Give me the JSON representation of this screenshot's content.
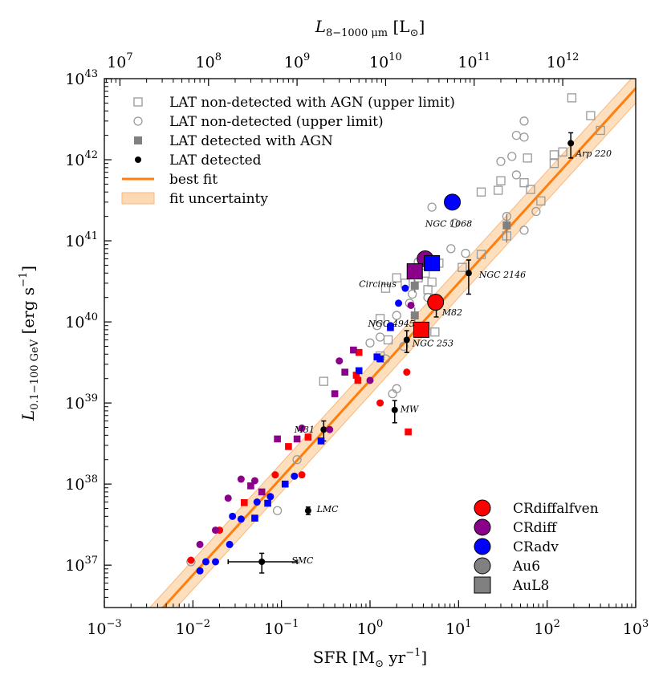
{
  "chart_data": {
    "type": "scatter",
    "xlabel": "SFR [M",
    "xlabel_sub": "⊙",
    "xlabel_unit": " yr",
    "xlabel_exp": "−1",
    "xlabel_close": "]",
    "ylabel_main": "L",
    "ylabel_sub": "0.1−100 GeV",
    "ylabel_unit": " [erg s",
    "ylabel_exp": "−1",
    "ylabel_close": "]",
    "top_label_main": "L",
    "top_label_sub": "8−1000 μm",
    "top_label_unit": " [L",
    "top_label_sub2": "⊙",
    "top_label_close": "]",
    "xlim": [
      0.001,
      1000
    ],
    "ylim": [
      3e+36,
      1e+43
    ],
    "x_ticks": [
      {
        "value": 0.001,
        "base": "10",
        "exp": "−3"
      },
      {
        "value": 0.01,
        "base": "10",
        "exp": "−2"
      },
      {
        "value": 0.1,
        "base": "10",
        "exp": "−1"
      },
      {
        "value": 1,
        "base": "10",
        "exp": "0"
      },
      {
        "value": 10,
        "base": "10",
        "exp": "1"
      },
      {
        "value": 100,
        "base": "10",
        "exp": "2"
      },
      {
        "value": 1000,
        "base": "10",
        "exp": "3"
      }
    ],
    "y_ticks": [
      {
        "value": 1e+37,
        "base": "10",
        "exp": "37"
      },
      {
        "value": 1e+38,
        "base": "10",
        "exp": "38"
      },
      {
        "value": 1e+39,
        "base": "10",
        "exp": "39"
      },
      {
        "value": 1e+40,
        "base": "10",
        "exp": "40"
      },
      {
        "value": 1e+41,
        "base": "10",
        "exp": "41"
      },
      {
        "value": 1e+42,
        "base": "10",
        "exp": "42"
      },
      {
        "value": 1e+43,
        "base": "10",
        "exp": "43"
      }
    ],
    "top_ticks": [
      {
        "sfr": 0.0015,
        "base": "10",
        "exp": "7"
      },
      {
        "sfr": 0.015,
        "base": "10",
        "exp": "8"
      },
      {
        "sfr": 0.15,
        "base": "10",
        "exp": "9"
      },
      {
        "sfr": 1.5,
        "base": "10",
        "exp": "10"
      },
      {
        "sfr": 15,
        "base": "10",
        "exp": "11"
      },
      {
        "sfr": 150,
        "base": "10",
        "exp": "12"
      }
    ],
    "best_fit": {
      "slope": 1.2,
      "intercept_log": 39.28
    },
    "fit_band": {
      "lower_log_offset": -0.18,
      "upper_log_offset": 0.18
    },
    "colors": {
      "fit": "#ff7f0e",
      "band": "#fdd9b3",
      "gray_open": "#999999",
      "gray_fill": "#808080",
      "red": "#ff0000",
      "purple": "#8b008b",
      "blue": "#0000ff",
      "black": "#000000"
    },
    "legend_top": [
      {
        "label": "LAT non-detected with AGN (upper limit)",
        "marker": "open-square"
      },
      {
        "label": "LAT non-detected (upper limit)",
        "marker": "open-circle"
      },
      {
        "label": "LAT detected with AGN",
        "marker": "gray-square"
      },
      {
        "label": "LAT detected",
        "marker": "black-dot"
      },
      {
        "label": "best fit",
        "marker": "line"
      },
      {
        "label": "fit uncertainty",
        "marker": "band"
      }
    ],
    "legend_bottom": [
      {
        "label": "CRdiffalfven",
        "marker": "circle",
        "color": "#ff0000"
      },
      {
        "label": "CRdiff",
        "marker": "circle",
        "color": "#8b008b"
      },
      {
        "label": "CRadv",
        "marker": "circle",
        "color": "#0000ff"
      },
      {
        "label": "Au6",
        "marker": "circle",
        "color": "#808080"
      },
      {
        "label": "AuL8",
        "marker": "square",
        "color": "#808080"
      }
    ],
    "series": [
      {
        "name": "LAT non-detected with AGN (upper limit)",
        "marker": "open-square",
        "points": [
          [
            190,
            5.8e+42
          ],
          [
            310,
            3.5e+42
          ],
          [
            400,
            2.3e+42
          ],
          [
            150,
            1.25e+42
          ],
          [
            120,
            1.15e+42
          ],
          [
            120,
            9e+41
          ],
          [
            60,
            1.05e+42
          ],
          [
            30,
            5.5e+41
          ],
          [
            28,
            4.2e+41
          ],
          [
            55,
            5.2e+41
          ],
          [
            65,
            4.3e+41
          ],
          [
            85,
            3.1e+41
          ],
          [
            18,
            4e+41
          ],
          [
            35,
            1.15e+41
          ],
          [
            18,
            6.8e+40
          ],
          [
            11,
            4.7e+40
          ],
          [
            6,
            5.3e+40
          ],
          [
            4.2,
            4e+40
          ],
          [
            3.5,
            3.5e+40
          ],
          [
            5,
            3.1e+40
          ],
          [
            4.5,
            2.5e+40
          ],
          [
            1.5,
            2.6e+40
          ],
          [
            2,
            3.5e+40
          ],
          [
            2.5,
            3e+40
          ],
          [
            1.3,
            1.1e+40
          ],
          [
            5.4,
            7.5e+39
          ],
          [
            1.3,
            3.8e+39
          ],
          [
            1.6,
            6e+39
          ],
          [
            0.3,
            1.85e+39
          ]
        ]
      },
      {
        "name": "LAT non-detected (upper limit)",
        "marker": "open-circle",
        "points": [
          [
            55,
            3e+42
          ],
          [
            45,
            2e+42
          ],
          [
            55,
            1.9e+42
          ],
          [
            40,
            1.1e+42
          ],
          [
            30,
            9.5e+41
          ],
          [
            45,
            6.5e+41
          ],
          [
            35,
            2e+41
          ],
          [
            5,
            2.6e+41
          ],
          [
            9,
            1.65e+41
          ],
          [
            12,
            7e+40
          ],
          [
            55,
            1.35e+41
          ],
          [
            75,
            2.3e+41
          ],
          [
            3.5,
            5.5e+40
          ],
          [
            8.2,
            8e+40
          ],
          [
            3,
            2.2e+40
          ],
          [
            4.5,
            2e+40
          ],
          [
            2.8,
            1.7e+40
          ],
          [
            2,
            1.2e+40
          ],
          [
            1.2,
            9e+39
          ],
          [
            1.3,
            6.5e+39
          ],
          [
            1,
            5.5e+39
          ],
          [
            2.4,
            5e+39
          ],
          [
            1.5,
            3.5e+39
          ],
          [
            2,
            1.5e+39
          ],
          [
            1.8,
            1.3e+39
          ],
          [
            0.15,
            2e+38
          ],
          [
            0.09,
            4.7e+37
          ],
          [
            0.0095,
            1.1e+37
          ]
        ]
      },
      {
        "name": "LAT detected with AGN",
        "marker": "gray-square",
        "points": [
          [
            35,
            1.55e+41,
            6e+40
          ],
          [
            3.2,
            1.2e+40,
            3e+39
          ],
          [
            3.2,
            2.8e+40,
            5e+39
          ]
        ]
      },
      {
        "name": "LAT detected",
        "marker": "black-dot",
        "points": [
          [
            185,
            1.6e+42,
            5.5e+41
          ],
          [
            13,
            4e+40,
            1.8e+40
          ],
          [
            5.6,
            1.5e+40,
            3.5e+39
          ],
          [
            2.6,
            6e+39,
            1.8e+39
          ],
          [
            1.9,
            8.2e+38,
            2.5e+38
          ],
          [
            0.3,
            4.7e+38,
            1.3e+38
          ],
          [
            0.2,
            4.7e+37,
            5e+36
          ],
          [
            0.06,
            1.1e+37,
            3e+36
          ]
        ],
        "xerr": [
          null,
          null,
          null,
          null,
          null,
          null,
          null,
          [
            0.035,
            0.09
          ]
        ]
      }
    ],
    "sim_points": [
      {
        "marker": "circle",
        "color": "#ff0000",
        "big": true,
        "points": [
          [
            5.5,
            1.75e+40
          ]
        ]
      },
      {
        "marker": "square",
        "color": "#ff0000",
        "big": true,
        "points": [
          [
            3.8,
            8e+39
          ]
        ]
      },
      {
        "marker": "circle",
        "color": "#8b008b",
        "big": true,
        "points": [
          [
            4.2,
            6e+40
          ]
        ]
      },
      {
        "marker": "square",
        "color": "#8b008b",
        "big": true,
        "points": [
          [
            3.2,
            4.2e+40
          ]
        ]
      },
      {
        "marker": "circle",
        "color": "#0000ff",
        "big": true,
        "points": [
          [
            8.5,
            3e+41
          ]
        ]
      },
      {
        "marker": "square",
        "color": "#0000ff",
        "big": true,
        "points": [
          [
            5,
            5.3e+40
          ]
        ]
      },
      {
        "marker": "circle",
        "color": "#ff0000",
        "big": false,
        "points": [
          [
            2.6,
            2.4e+39
          ],
          [
            1.3,
            1e+39
          ],
          [
            0.17,
            1.3e+38
          ],
          [
            0.085,
            1.3e+38
          ],
          [
            0.02,
            2.7e+37
          ],
          [
            0.0095,
            1.15e+37
          ]
        ]
      },
      {
        "marker": "square",
        "color": "#ff0000",
        "big": false,
        "points": [
          [
            0.75,
            4.2e+39
          ],
          [
            0.7,
            2.2e+39
          ],
          [
            0.73,
            1.9e+39
          ],
          [
            0.2,
            3.8e+38
          ],
          [
            0.12,
            2.9e+38
          ],
          [
            0.038,
            5.9e+37
          ],
          [
            2.7,
            4.4e+38
          ]
        ]
      },
      {
        "marker": "circle",
        "color": "#8b008b",
        "big": false,
        "points": [
          [
            2.9,
            1.6e+40
          ],
          [
            0.45,
            3.3e+39
          ],
          [
            1,
            1.9e+39
          ],
          [
            0.35,
            4.7e+38
          ],
          [
            0.17,
            4.9e+38
          ],
          [
            0.035,
            1.15e+38
          ],
          [
            0.05,
            1.1e+38
          ],
          [
            0.025,
            6.7e+37
          ],
          [
            0.018,
            2.7e+37
          ],
          [
            0.012,
            1.8e+37
          ]
        ]
      },
      {
        "marker": "square",
        "color": "#8b008b",
        "big": false,
        "points": [
          [
            0.65,
            4.5e+39
          ],
          [
            0.52,
            2.4e+39
          ],
          [
            0.4,
            1.3e+39
          ],
          [
            0.09,
            3.6e+38
          ],
          [
            0.15,
            3.6e+38
          ],
          [
            0.045,
            9.5e+37
          ],
          [
            0.06,
            8e+37
          ]
        ]
      },
      {
        "marker": "circle",
        "color": "#0000ff",
        "big": false,
        "points": [
          [
            2.5,
            2.6e+40
          ],
          [
            2.1,
            1.7e+40
          ],
          [
            1.7,
            9e+39
          ],
          [
            0.14,
            1.25e+38
          ],
          [
            0.075,
            7e+37
          ],
          [
            0.053,
            6e+37
          ],
          [
            0.035,
            3.7e+37
          ],
          [
            0.028,
            4e+37
          ],
          [
            0.026,
            1.8e+37
          ],
          [
            0.018,
            1.1e+37
          ],
          [
            0.014,
            1.1e+37
          ],
          [
            0.012,
            8.5e+36
          ]
        ]
      },
      {
        "marker": "square",
        "color": "#0000ff",
        "big": false,
        "points": [
          [
            1.7,
            8.5e+39
          ],
          [
            1.2,
            3.7e+39
          ],
          [
            1.3,
            3.5e+39
          ],
          [
            0.75,
            2.5e+39
          ],
          [
            0.28,
            3.4e+38
          ],
          [
            0.11,
            1e+38
          ],
          [
            0.07,
            5.8e+37
          ],
          [
            0.05,
            3.8e+37
          ]
        ]
      }
    ],
    "annotations": [
      {
        "text": "Arp 220",
        "x": 210,
        "y": 1.1e+42
      },
      {
        "text": "NGC 1068",
        "x": 4.2,
        "y": 1.5e+41
      },
      {
        "text": "NGC 2146",
        "x": 17,
        "y": 3.5e+40
      },
      {
        "text": "Circinus",
        "x": 0.75,
        "y": 2.7e+40
      },
      {
        "text": "M82",
        "x": 6.5,
        "y": 1.2e+40
      },
      {
        "text": "NGC 4945",
        "x": 0.95,
        "y": 8.7e+39
      },
      {
        "text": "NGC 253",
        "x": 3,
        "y": 5e+39
      },
      {
        "text": "MW",
        "x": 2.2,
        "y": 7.7e+38
      },
      {
        "text": "M31",
        "x": 0.14,
        "y": 4.3e+38
      },
      {
        "text": "LMC",
        "x": 0.25,
        "y": 4.5e+37
      },
      {
        "text": "SMC",
        "x": 0.13,
        "y": 1.05e+37
      }
    ]
  }
}
